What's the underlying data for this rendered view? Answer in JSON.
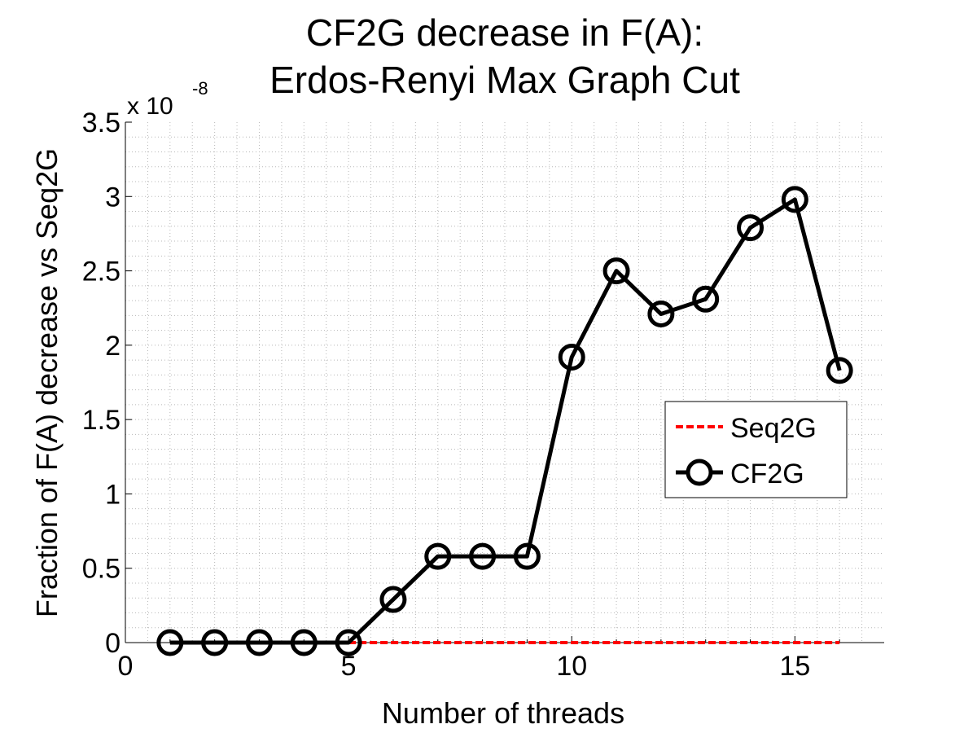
{
  "chart_data": {
    "type": "line",
    "title_line1": "CF2G decrease in F(A):",
    "title_line2": "Erdos-Renyi Max Graph Cut",
    "xlabel": "Number of threads",
    "ylabel": "Fraction of F(A) decrease vs Seq2G",
    "y_multiplier_base": "x 10",
    "y_multiplier_exponent": "-8",
    "xlim": [
      0,
      17
    ],
    "ylim": [
      0,
      3.5
    ],
    "x_ticks": [
      0,
      5,
      10,
      15
    ],
    "x_tick_labels": [
      "0",
      "5",
      "10",
      "15"
    ],
    "y_ticks": [
      0,
      0.5,
      1,
      1.5,
      2,
      2.5,
      3,
      3.5
    ],
    "y_tick_labels": [
      "0",
      "0.5",
      "1",
      "1.5",
      "2",
      "2.5",
      "3",
      "3.5"
    ],
    "grid": true,
    "legend_position": "right",
    "series": [
      {
        "name": "Seq2G",
        "color": "#ff0000",
        "style": "dashed",
        "x": [
          1,
          2,
          3,
          4,
          5,
          6,
          7,
          8,
          9,
          10,
          11,
          12,
          13,
          14,
          15,
          16
        ],
        "y": [
          0,
          0,
          0,
          0,
          0,
          0,
          0,
          0,
          0,
          0,
          0,
          0,
          0,
          0,
          0,
          0
        ]
      },
      {
        "name": "CF2G",
        "color": "#000000",
        "style": "solid-circle-markers",
        "x": [
          1,
          2,
          3,
          4,
          5,
          6,
          7,
          8,
          9,
          10,
          11,
          12,
          13,
          14,
          15,
          16
        ],
        "y": [
          0,
          0,
          0,
          0,
          0,
          0.29,
          0.58,
          0.58,
          0.58,
          1.92,
          2.5,
          2.21,
          2.31,
          2.79,
          2.98,
          1.83
        ]
      }
    ]
  }
}
